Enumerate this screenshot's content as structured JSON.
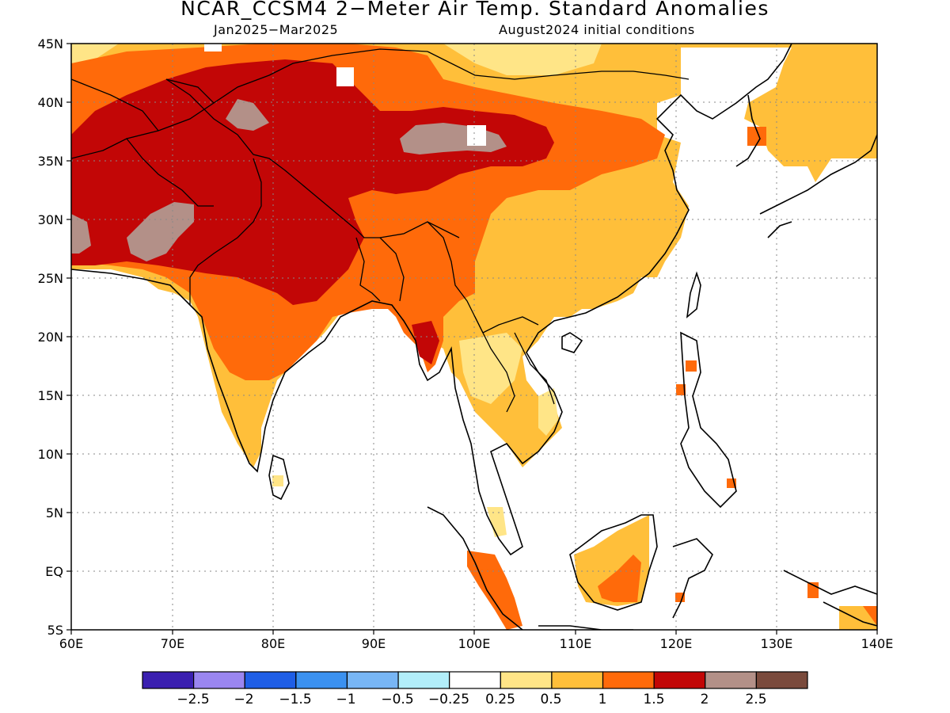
{
  "header": {
    "title": "NCAR_CCSM4 2−Meter Air Temp. Standard Anomalies",
    "period": "Jan2025−Mar2025",
    "initial": "August2024 initial conditions"
  },
  "axes": {
    "lat_labels": [
      "45N",
      "40N",
      "35N",
      "30N",
      "25N",
      "20N",
      "15N",
      "10N",
      "5N",
      "EQ",
      "5S"
    ],
    "lon_labels": [
      "60E",
      "70E",
      "80E",
      "90E",
      "100E",
      "110E",
      "120E",
      "130E",
      "140E"
    ]
  },
  "colorbar": {
    "colors": [
      "#3a1fb0",
      "#9a86f0",
      "#1f5ee6",
      "#3b91f0",
      "#78b6f5",
      "#b2eefa",
      "#ffffff",
      "#ffe587",
      "#ffbf3a",
      "#ff6a0a",
      "#c20606",
      "#b39088",
      "#7a4a3c"
    ],
    "labels": [
      "−2.5",
      "−2",
      "−1.5",
      "−1",
      "−0.5",
      "−0.25",
      "0.25",
      "0.5",
      "1",
      "1.5",
      "2",
      "2.5"
    ]
  },
  "map": {
    "extent_lon": [
      60,
      140
    ],
    "extent_lat": [
      -5,
      45
    ],
    "fill_colors": {
      "light": "#ffe587",
      "orange": "#ffbf3a",
      "darkorange": "#ff6a0a",
      "red": "#c20606",
      "gray": "#b39088"
    }
  }
}
